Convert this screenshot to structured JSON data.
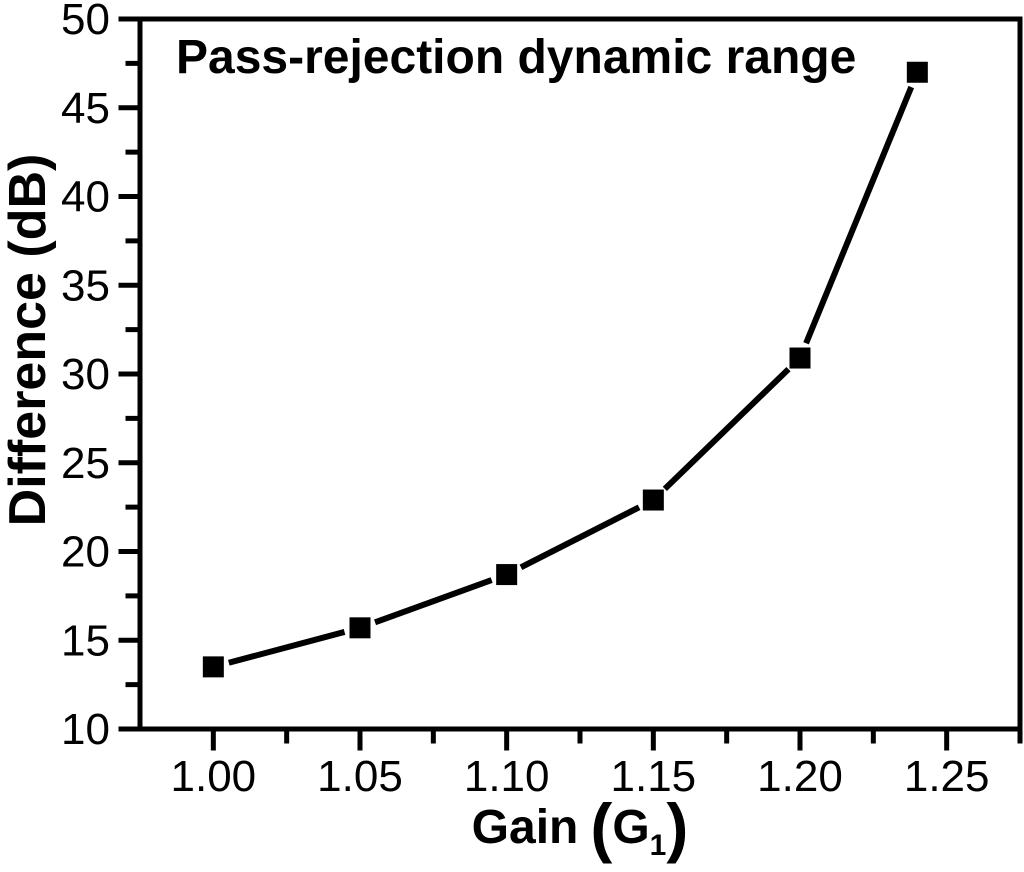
{
  "chart_data": {
    "type": "line",
    "title": "Pass-rejection dynamic range",
    "xlabel": "Gain (G1)",
    "xlabel_parts": {
      "prefix": "Gain",
      "open_paren": "(",
      "symbol": "G",
      "subscript": "1",
      "close_paren": ")"
    },
    "ylabel": "Difference (dB)",
    "xlim": [
      0.975,
      1.275
    ],
    "ylim": [
      10,
      50
    ],
    "x_axis": {
      "major_ticks": [
        1.0,
        1.05,
        1.1,
        1.15,
        1.2,
        1.25
      ],
      "tick_labels": [
        "1.00",
        "1.05",
        "1.10",
        "1.15",
        "1.20",
        "1.25"
      ],
      "minor_ticks": [
        1.025,
        1.075,
        1.125,
        1.175,
        1.225,
        1.275
      ]
    },
    "y_axis": {
      "major_ticks": [
        10,
        15,
        20,
        25,
        30,
        35,
        40,
        45,
        50
      ],
      "tick_labels": [
        "10",
        "15",
        "20",
        "25",
        "30",
        "35",
        "40",
        "45",
        "50"
      ],
      "minor_ticks": [
        12.5,
        17.5,
        22.5,
        27.5,
        32.5,
        37.5,
        42.5,
        47.5
      ]
    },
    "series": [
      {
        "name": "pass-rejection dynamic range",
        "marker": "filled-square",
        "x": [
          1.0,
          1.05,
          1.1,
          1.15,
          1.2,
          1.24
        ],
        "y": [
          13.5,
          15.7,
          18.7,
          22.9,
          30.9,
          47.0
        ]
      }
    ],
    "ink_color": "#000000",
    "background_color": "#ffffff",
    "grid": false,
    "legend": null
  }
}
